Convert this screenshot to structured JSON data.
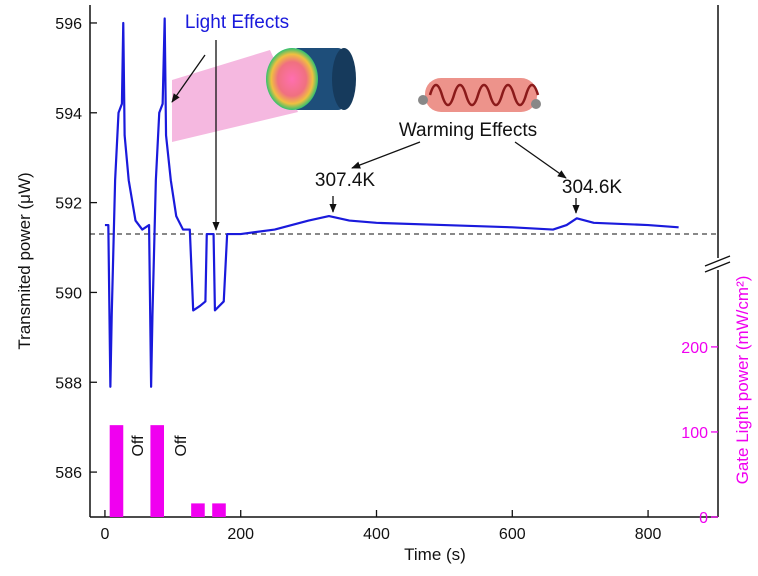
{
  "chart_data": {
    "type": "line",
    "xlabel": "Time (s)",
    "ylabel": "Transmited power (μW)",
    "y2label": "Gate Light power (mW/cm²)",
    "xlim": [
      -22,
      903
    ],
    "ylim": [
      585,
      596.4
    ],
    "y2lim": [
      0,
      602
    ],
    "xticks": [
      0,
      200,
      400,
      600,
      800
    ],
    "yticks": [
      586,
      588,
      590,
      592,
      594,
      596
    ],
    "y2ticks": [
      0,
      100,
      200
    ],
    "reference_line": 591.3,
    "series": [
      {
        "type": "line",
        "color": "#1a1adc",
        "x": [
          0,
          5,
          8,
          10,
          15,
          20,
          25,
          27,
          29,
          35,
          45,
          55,
          65,
          68,
          70,
          75,
          80,
          85,
          88,
          90,
          97,
          105,
          115,
          125,
          130,
          140,
          148,
          150,
          160,
          162,
          175,
          180,
          200,
          250,
          300,
          330,
          360,
          400,
          500,
          600,
          660,
          680,
          695,
          720,
          800,
          845
        ],
        "values": [
          591.5,
          591.5,
          587.9,
          589.5,
          592.5,
          594,
          594.2,
          596,
          593.5,
          592.5,
          591.6,
          591.4,
          591.5,
          587.9,
          589.5,
          592.5,
          594,
          594.2,
          596.1,
          593.5,
          592.5,
          591.7,
          591.4,
          591.4,
          589.6,
          589.7,
          589.8,
          591.3,
          591.3,
          589.6,
          589.8,
          591.3,
          591.3,
          591.4,
          591.6,
          591.7,
          591.6,
          591.55,
          591.5,
          591.45,
          591.4,
          591.5,
          591.65,
          591.55,
          591.5,
          591.45
        ]
      },
      {
        "type": "bar",
        "axis": "y2",
        "color": "#f000f0",
        "x": [
          17,
          77,
          137,
          168
        ],
        "values": [
          108,
          108,
          16,
          16
        ]
      }
    ],
    "annotations": [
      "Light Effects",
      "Warming Effects",
      "307.4K",
      "304.6K",
      "Off",
      "Off"
    ]
  }
}
